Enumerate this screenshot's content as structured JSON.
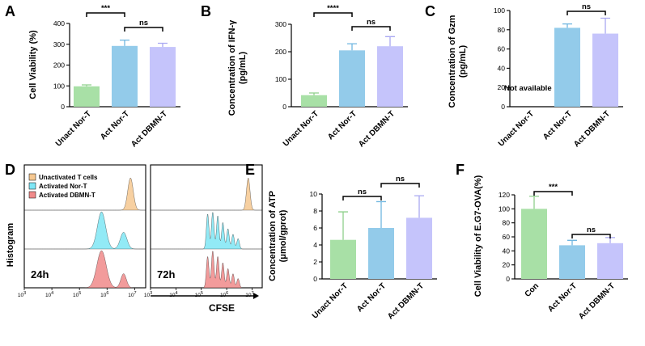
{
  "colors": {
    "green": "#a8e0a6",
    "green_err": "#8fd08c",
    "blue": "#93cbea",
    "blue_err": "#6fb6e0",
    "purple": "#c5c4fb",
    "purple_err": "#a9a8f2",
    "orange": "#f6c891",
    "cyan": "#7fe6f5",
    "red": "#f08a8a"
  },
  "chart_data": [
    {
      "id": "A",
      "type": "bar",
      "panel": "A",
      "ylabel": "Cell Viability (%)",
      "categories": [
        "Unact Nor-T",
        "Act Nor-T",
        "Act DBMN-T"
      ],
      "values": [
        98,
        292,
        287
      ],
      "errors": [
        7,
        28,
        18
      ],
      "ylim": [
        0,
        400
      ],
      "yticks": [
        "0",
        "100",
        "200",
        "300",
        "400"
      ],
      "significance": [
        {
          "from": 0,
          "to": 1,
          "label": "***"
        },
        {
          "from": 1,
          "to": 2,
          "label": "ns"
        }
      ]
    },
    {
      "id": "B",
      "type": "bar",
      "panel": "B",
      "ylabel": [
        "Concentration of IFN-γ",
        "(pg/mL)"
      ],
      "categories": [
        "Unact Nor-T",
        "Act Nor-T",
        "Act DBMN-T"
      ],
      "values": [
        42,
        205,
        220
      ],
      "errors": [
        8,
        24,
        35
      ],
      "ylim": [
        0,
        300
      ],
      "yticks": [
        "0",
        "100",
        "200",
        "300"
      ],
      "significance": [
        {
          "from": 0,
          "to": 1,
          "label": "****"
        },
        {
          "from": 1,
          "to": 2,
          "label": "ns"
        }
      ]
    },
    {
      "id": "C",
      "type": "bar",
      "panel": "C",
      "ylabel": [
        "Concentration of Gzm",
        "(pg/mL)"
      ],
      "categories": [
        "Unact Nor-T",
        "Act Nor-T",
        "Act DBMN-T"
      ],
      "values": [
        null,
        82,
        76
      ],
      "errors": [
        0,
        4,
        16
      ],
      "ylim": [
        0,
        100
      ],
      "yticks": [
        "0",
        "20",
        "40",
        "60",
        "80",
        "100"
      ],
      "annotation": "Not available",
      "significance": [
        {
          "from": 1,
          "to": 2,
          "label": "ns"
        }
      ]
    },
    {
      "id": "E",
      "type": "bar",
      "panel": "E",
      "ylabel": [
        "Concentration of ATP",
        "(μmol/gprot)"
      ],
      "categories": [
        "Unact Nor-T",
        "Act Nor-T",
        "Act DBMN-T"
      ],
      "values": [
        4.6,
        6.0,
        7.2
      ],
      "errors": [
        3.3,
        3.1,
        2.6
      ],
      "ylim": [
        0,
        10
      ],
      "yticks": [
        "0",
        "2",
        "4",
        "6",
        "8",
        "10"
      ],
      "significance": [
        {
          "from": 0,
          "to": 1,
          "label": "ns"
        },
        {
          "from": 1,
          "to": 2,
          "label": "ns"
        }
      ]
    },
    {
      "id": "F",
      "type": "bar",
      "panel": "F",
      "ylabel": "Cell Viability of E.G7-OVA(%)",
      "categories": [
        "Con",
        "Act Nor-T",
        "Act DBMN-T"
      ],
      "values": [
        100,
        48,
        51
      ],
      "errors": [
        18,
        7,
        8
      ],
      "ylim": [
        0,
        120
      ],
      "yticks": [
        "0",
        "20",
        "40",
        "60",
        "80",
        "100",
        "120"
      ],
      "significance": [
        {
          "from": 0,
          "to": 1,
          "label": "***"
        },
        {
          "from": 1,
          "to": 2,
          "label": "ns"
        }
      ]
    },
    {
      "id": "D",
      "type": "area",
      "panel": "D",
      "ylabel": "Histogram",
      "xlabel": "CFSE",
      "xticks": [
        "3",
        "4",
        "5",
        "6",
        "7"
      ],
      "xtick_base": "10",
      "legend": [
        "Unactivated T cells",
        "Activated Nor-T",
        "Activated DBMN-T"
      ],
      "timepoints": [
        "24h",
        "72h"
      ],
      "x_domain_log10": [
        3,
        7.4
      ],
      "series_24h": [
        {
          "name": "Unactivated T cells",
          "peaks": [
            {
              "mu": 6.85,
              "sigma": 0.1,
              "h": 1.0
            }
          ]
        },
        {
          "name": "Activated Nor-T",
          "peaks": [
            {
              "mu": 5.8,
              "sigma": 0.15,
              "h": 1.0
            },
            {
              "mu": 6.6,
              "sigma": 0.12,
              "h": 0.45
            }
          ]
        },
        {
          "name": "Activated DBMN-T",
          "peaks": [
            {
              "mu": 5.8,
              "sigma": 0.17,
              "h": 1.0
            },
            {
              "mu": 6.6,
              "sigma": 0.1,
              "h": 0.38
            }
          ]
        }
      ],
      "series_72h": [
        {
          "name": "Unactivated T cells",
          "peaks": [
            {
              "mu": 6.85,
              "sigma": 0.07,
              "h": 1.0
            }
          ]
        },
        {
          "name": "Activated Nor-T",
          "peaks": [
            {
              "mu": 5.25,
              "sigma": 0.05,
              "h": 0.95
            },
            {
              "mu": 5.45,
              "sigma": 0.05,
              "h": 1.0
            },
            {
              "mu": 5.65,
              "sigma": 0.05,
              "h": 0.9
            },
            {
              "mu": 5.85,
              "sigma": 0.05,
              "h": 0.72
            },
            {
              "mu": 6.05,
              "sigma": 0.05,
              "h": 0.55
            },
            {
              "mu": 6.25,
              "sigma": 0.05,
              "h": 0.4
            },
            {
              "mu": 6.45,
              "sigma": 0.05,
              "h": 0.28
            }
          ]
        },
        {
          "name": "Activated DBMN-T",
          "peaks": [
            {
              "mu": 5.25,
              "sigma": 0.05,
              "h": 0.85
            },
            {
              "mu": 5.45,
              "sigma": 0.05,
              "h": 1.0
            },
            {
              "mu": 5.65,
              "sigma": 0.05,
              "h": 0.85
            },
            {
              "mu": 5.85,
              "sigma": 0.05,
              "h": 0.68
            },
            {
              "mu": 6.05,
              "sigma": 0.05,
              "h": 0.52
            },
            {
              "mu": 6.25,
              "sigma": 0.05,
              "h": 0.38
            },
            {
              "mu": 6.45,
              "sigma": 0.05,
              "h": 0.25
            }
          ]
        }
      ]
    }
  ]
}
